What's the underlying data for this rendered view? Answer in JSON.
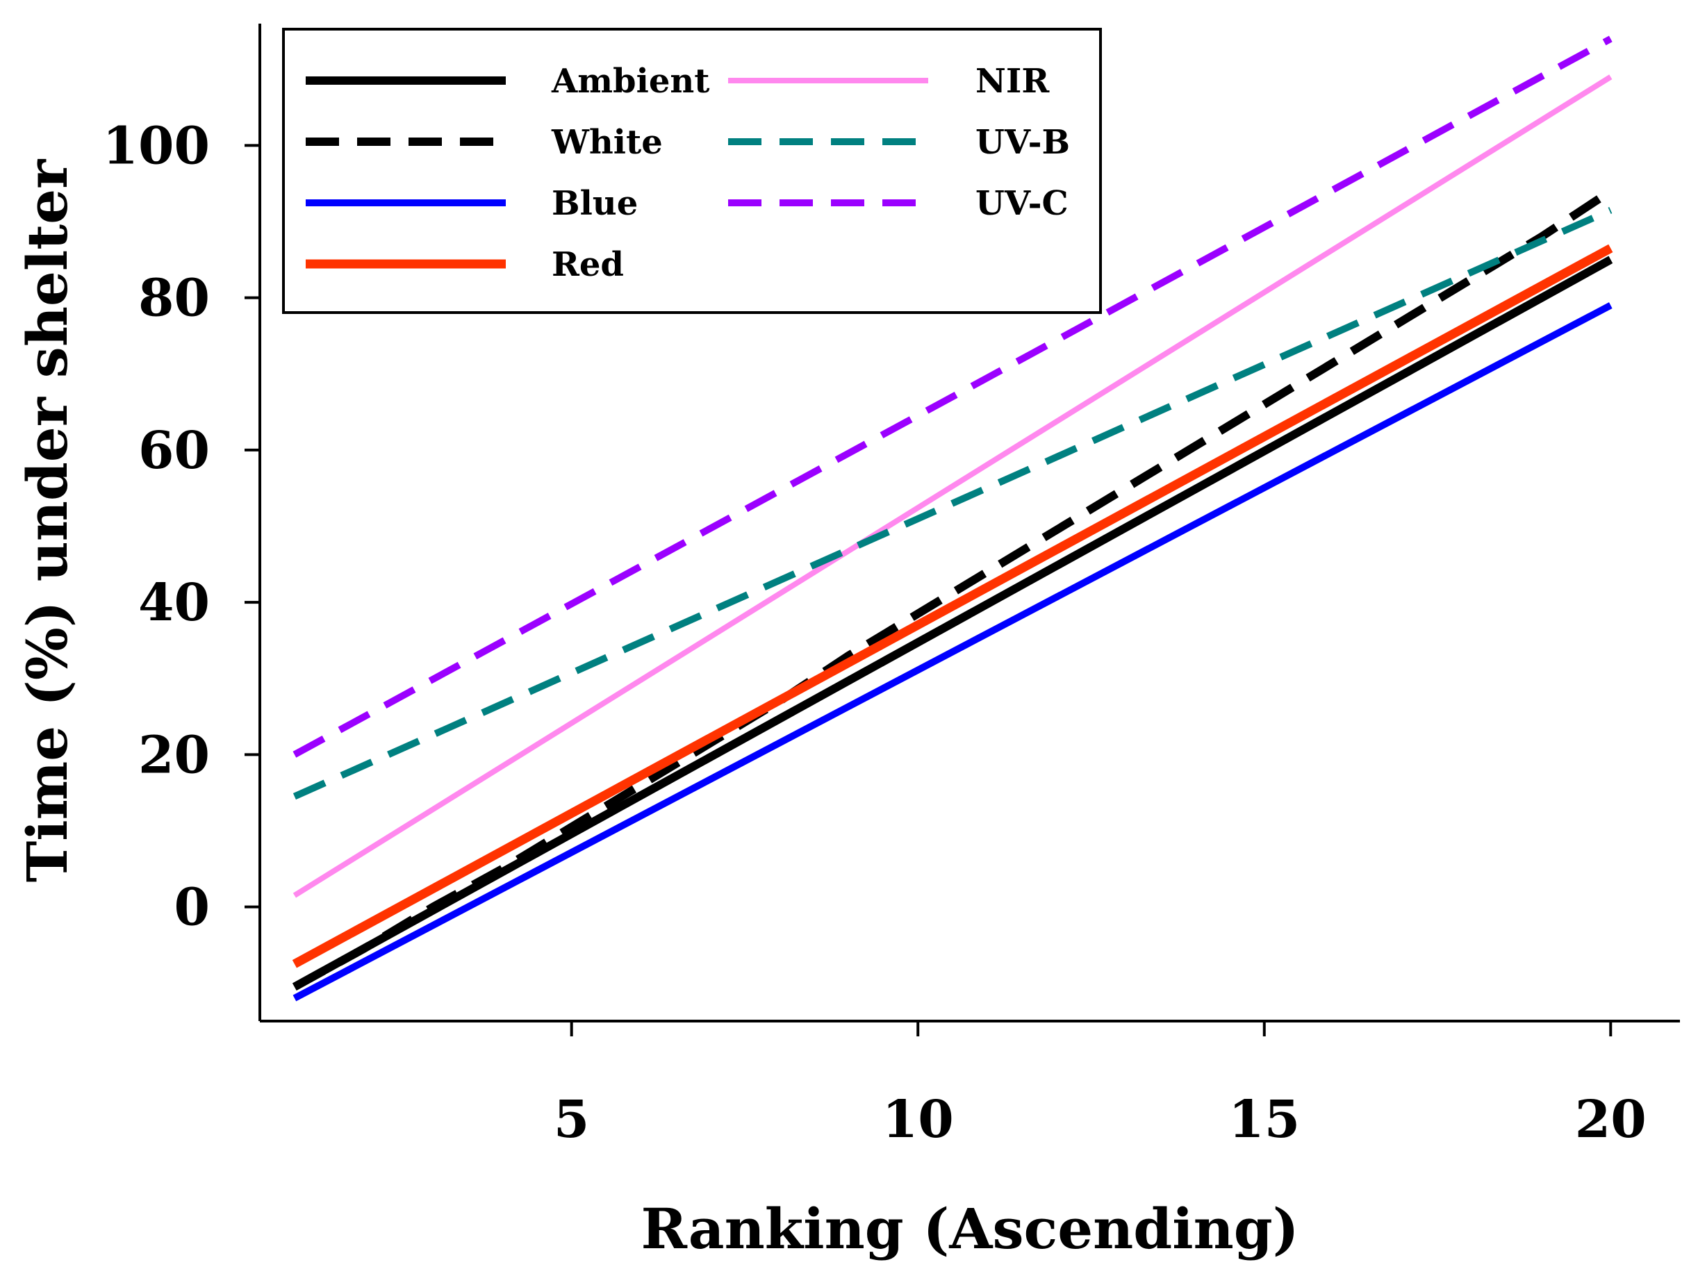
{
  "chart_data": {
    "type": "line",
    "title": "",
    "xlabel": "Ranking (Ascending)",
    "ylabel": "Time (%) under shelter",
    "xlim": [
      0.5,
      21
    ],
    "ylim": [
      -15,
      116
    ],
    "xticks": [
      5,
      10,
      15,
      20
    ],
    "yticks": [
      0,
      20,
      40,
      60,
      80,
      100
    ],
    "grid": false,
    "legend_position": "top-left",
    "series": [
      {
        "name": "Ambient",
        "x": [
          1,
          20
        ],
        "y": [
          -10.5,
          85
        ],
        "color": "#000000",
        "dash": "solid",
        "width": 12
      },
      {
        "name": "White",
        "x": [
          1,
          2,
          3,
          4,
          5,
          6,
          7,
          8,
          9,
          10,
          11,
          12,
          13,
          14,
          15,
          16,
          17,
          18,
          19,
          20
        ],
        "y": [
          -10.5,
          -5.5,
          0,
          5,
          10.5,
          16,
          21.5,
          27,
          33,
          38.5,
          44,
          49.5,
          55,
          60.5,
          66,
          71.5,
          77,
          82.5,
          88,
          94
        ],
        "color": "#000000",
        "dash": "dashed",
        "width": 12
      },
      {
        "name": "Blue",
        "x": [
          1,
          20
        ],
        "y": [
          -12,
          79
        ],
        "color": "#0000ff",
        "dash": "solid",
        "width": 10
      },
      {
        "name": "Red",
        "x": [
          1,
          20
        ],
        "y": [
          -7.5,
          86.5
        ],
        "color": "#ff3300",
        "dash": "solid",
        "width": 13
      },
      {
        "name": "NIR",
        "x": [
          1,
          20
        ],
        "y": [
          1.5,
          109
        ],
        "color": "#ff88ee",
        "dash": "solid",
        "width": 8
      },
      {
        "name": "UV-B",
        "x": [
          1,
          20
        ],
        "y": [
          14.5,
          91.5
        ],
        "color": "#008080",
        "dash": "dashed",
        "width": 10
      },
      {
        "name": "UV-C",
        "x": [
          1,
          20
        ],
        "y": [
          20,
          114
        ],
        "color": "#9b00ff",
        "dash": "dashed",
        "width": 10
      }
    ]
  }
}
